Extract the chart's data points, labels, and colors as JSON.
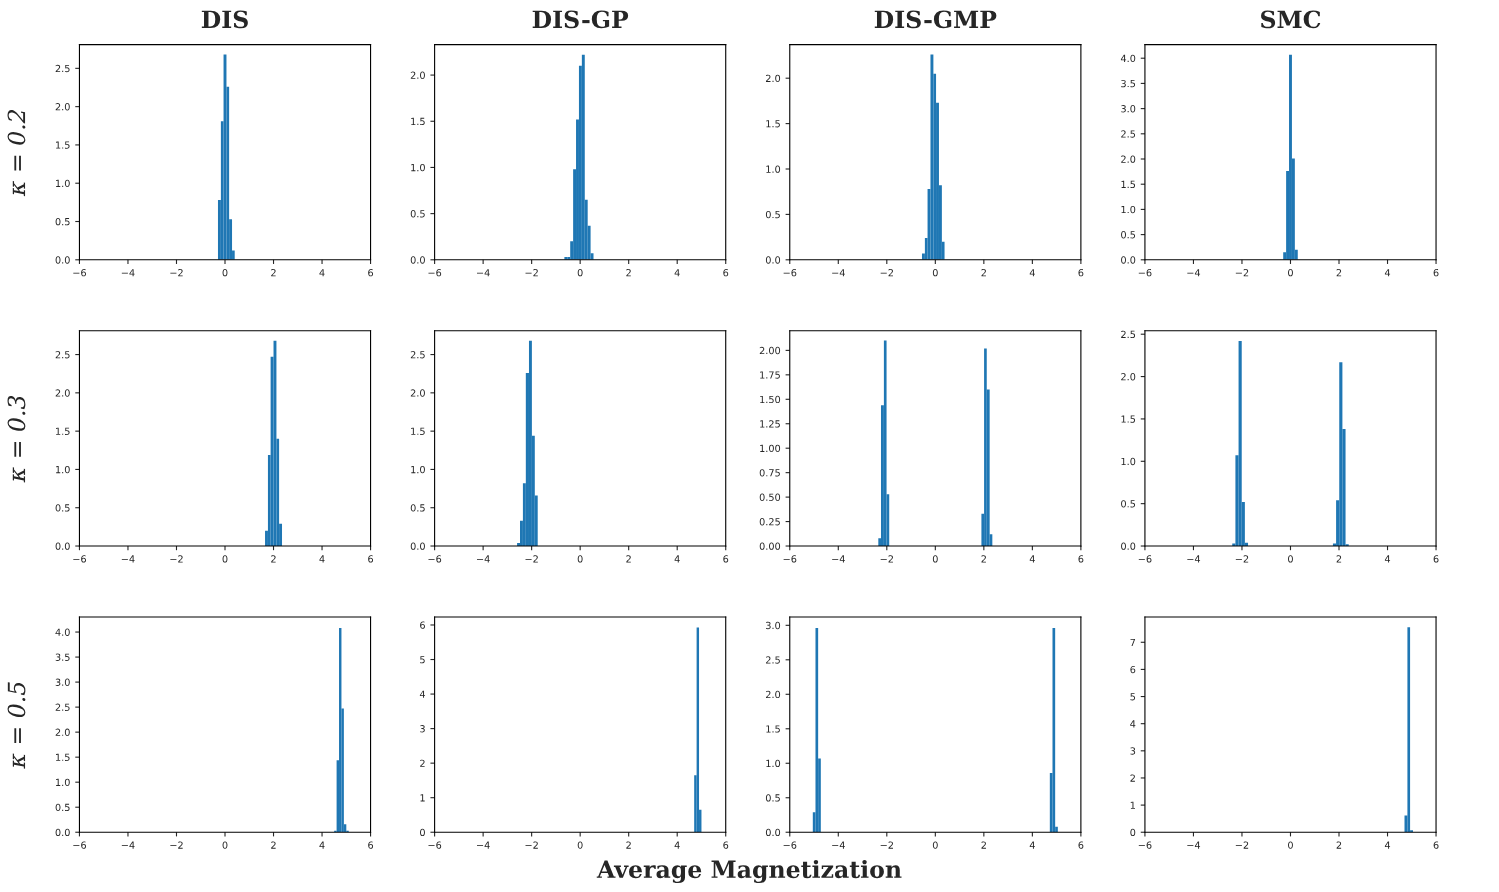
{
  "chart_data": [
    {
      "type": "histogram",
      "title": "DIS",
      "ylabel": "κ = 0.2",
      "color": "#1f77b4",
      "bins": [
        -0.4,
        -0.29,
        -0.17,
        -0.06,
        0.06,
        0.17,
        0.29,
        0.4
      ],
      "values": [
        null,
        0.78,
        1.81,
        2.68,
        2.26,
        0.53,
        0.12
      ],
      "xlim": [
        -6,
        6
      ],
      "xticks": [
        -6,
        -4,
        -2,
        0,
        2,
        4,
        6
      ],
      "ylim": [
        0,
        2.81
      ],
      "yticks": [
        {
          "value": 0,
          "label": "0.0"
        },
        0.5,
        {
          "value": 1,
          "label": "1.0"
        },
        1.5,
        {
          "value": 2,
          "label": "2.0"
        },
        2.5
      ]
    },
    {
      "type": "histogram",
      "title": "DIS-GP",
      "color": "#1f77b4",
      "bins": [
        -0.65,
        -0.53,
        -0.41,
        -0.29,
        -0.17,
        -0.05,
        0.07,
        0.19,
        0.31,
        0.43,
        0.55
      ],
      "values": [
        0.03,
        0.03,
        0.2,
        0.98,
        1.52,
        2.1,
        2.22,
        0.65,
        0.37,
        0.07
      ],
      "xlim": [
        -6,
        6
      ],
      "xticks": [
        -6,
        -4,
        -2,
        0,
        2,
        4,
        6
      ],
      "ylim": [
        0,
        2.33
      ],
      "yticks": [
        {
          "value": 0,
          "label": "0.0"
        },
        0.5,
        {
          "value": 1,
          "label": "1.0"
        },
        1.5,
        {
          "value": 2,
          "label": "2.0"
        }
      ]
    },
    {
      "type": "histogram",
      "title": "DIS-GMP",
      "color": "#1f77b4",
      "bins": [
        -0.55,
        -0.43,
        -0.32,
        -0.2,
        -0.08,
        0.03,
        0.15,
        0.27,
        0.38,
        0.5
      ],
      "values": [
        0.07,
        0.24,
        0.78,
        2.26,
        2.05,
        1.73,
        0.82,
        0.2,
        null
      ],
      "xlim": [
        -6,
        6
      ],
      "xticks": [
        -6,
        -4,
        -2,
        0,
        2,
        4,
        6
      ],
      "ylim": [
        0,
        2.37
      ],
      "yticks": [
        {
          "value": 0,
          "label": "0.0"
        },
        0.5,
        {
          "value": 1,
          "label": "1.0"
        },
        1.5,
        {
          "value": 2,
          "label": "2.0"
        }
      ]
    },
    {
      "type": "histogram",
      "title": "SMC",
      "color": "#1f77b4",
      "bins": [
        -0.3,
        -0.18,
        -0.06,
        0.06,
        0.18,
        0.3
      ],
      "values": [
        0.15,
        1.76,
        4.07,
        2.01,
        0.2
      ],
      "xlim": [
        -6,
        6
      ],
      "xticks": [
        -6,
        -4,
        -2,
        0,
        2,
        4,
        6
      ],
      "ylim": [
        0,
        4.27
      ],
      "yticks": [
        {
          "value": 0,
          "label": "0.0"
        },
        0.5,
        {
          "value": 1,
          "label": "1.0"
        },
        1.5,
        {
          "value": 2,
          "label": "2.0"
        },
        2.5,
        {
          "value": 3,
          "label": "3.0"
        },
        3.5,
        {
          "value": 4,
          "label": "4.0"
        }
      ]
    },
    {
      "type": "histogram",
      "ylabel": "κ = 0.3",
      "color": "#1f77b4",
      "bins": [
        1.65,
        1.77,
        1.88,
        2.0,
        2.12,
        2.23,
        2.35
      ],
      "values": [
        0.2,
        1.19,
        2.47,
        2.68,
        1.4,
        0.29
      ],
      "xlim": [
        -6,
        6
      ],
      "xticks": [
        -6,
        -4,
        -2,
        0,
        2,
        4,
        6
      ],
      "ylim": [
        0,
        2.81
      ],
      "yticks": [
        {
          "value": 0,
          "label": "0.0"
        },
        0.5,
        {
          "value": 1,
          "label": "1.0"
        },
        1.5,
        {
          "value": 2,
          "label": "2.0"
        },
        2.5
      ]
    },
    {
      "type": "histogram",
      "color": "#1f77b4",
      "bins": [
        -2.6,
        -2.48,
        -2.36,
        -2.24,
        -2.11,
        -1.99,
        -1.87,
        -1.75
      ],
      "values": [
        0.04,
        0.33,
        0.82,
        2.26,
        2.68,
        1.44,
        0.66
      ],
      "xlim": [
        -6,
        6
      ],
      "xticks": [
        -6,
        -4,
        -2,
        0,
        2,
        4,
        6
      ],
      "ylim": [
        0,
        2.81
      ],
      "yticks": [
        {
          "value": 0,
          "label": "0.0"
        },
        0.5,
        {
          "value": 1,
          "label": "1.0"
        },
        1.5,
        {
          "value": 2,
          "label": "2.0"
        },
        2.5
      ]
    },
    {
      "type": "histogram",
      "color": "#1f77b4",
      "bins": [
        -2.35,
        -2.24,
        -2.12,
        -2.01,
        -1.9,
        1.9,
        2.01,
        2.12,
        2.24,
        2.35
      ],
      "values": [
        0.08,
        1.44,
        2.1,
        0.53,
        0,
        0.33,
        2.02,
        1.6,
        0.12
      ],
      "xlim": [
        -6,
        6
      ],
      "xticks": [
        -6,
        -4,
        -2,
        0,
        2,
        4,
        6
      ],
      "ylim": [
        0,
        2.2
      ],
      "yticks": [
        {
          "value": 0,
          "label": "0.00"
        },
        0.25,
        {
          "value": 0.5,
          "label": "0.50"
        },
        0.75,
        {
          "value": 1,
          "label": "1.00"
        },
        1.25,
        {
          "value": 1.5,
          "label": "1.50"
        },
        1.75,
        {
          "value": 2,
          "label": "2.00"
        }
      ]
    },
    {
      "type": "histogram",
      "color": "#1f77b4",
      "bins": [
        -2.4,
        -2.27,
        -2.14,
        -2.01,
        -1.88,
        -1.75,
        1.75,
        1.88,
        2.01,
        2.14,
        2.27,
        2.4
      ],
      "values": [
        0.03,
        1.07,
        2.42,
        0.52,
        0.04,
        0,
        0.03,
        0.54,
        2.17,
        1.38,
        0.02
      ],
      "xlim": [
        -6,
        6
      ],
      "xticks": [
        -6,
        -4,
        -2,
        0,
        2,
        4,
        6
      ],
      "ylim": [
        0,
        2.54
      ],
      "yticks": [
        {
          "value": 0,
          "label": "0.0"
        },
        0.5,
        {
          "value": 1,
          "label": "1.0"
        },
        1.5,
        {
          "value": 2,
          "label": "2.0"
        },
        2.5
      ]
    },
    {
      "type": "histogram",
      "ylabel": "κ = 0.5",
      "color": "#1f77b4",
      "bins": [
        4.5,
        4.6,
        4.7,
        4.8,
        4.9,
        5.0,
        5.1
      ],
      "values": [
        0.03,
        1.44,
        4.08,
        2.47,
        0.16,
        0.03
      ],
      "xlim": [
        -6,
        6
      ],
      "xticks": [
        -6,
        -4,
        -2,
        0,
        2,
        4,
        6
      ],
      "ylim": [
        0,
        4.3
      ],
      "yticks": [
        {
          "value": 0,
          "label": "0.0"
        },
        0.5,
        {
          "value": 1,
          "label": "1.0"
        },
        1.5,
        {
          "value": 2,
          "label": "2.0"
        },
        2.5,
        {
          "value": 3,
          "label": "3.0"
        },
        3.5,
        {
          "value": 4,
          "label": "4.0"
        }
      ]
    },
    {
      "type": "histogram",
      "xlabel": "Average Magnetization",
      "color": "#1f77b4",
      "bins": [
        4.7,
        4.8,
        4.9,
        5.0
      ],
      "values": [
        1.65,
        5.93,
        0.65
      ],
      "xlim": [
        -6,
        6
      ],
      "xticks": [
        -6,
        -4,
        -2,
        0,
        2,
        4,
        6
      ],
      "ylim": [
        0,
        6.23
      ],
      "yticks": [
        0,
        1,
        2,
        3,
        4,
        5,
        6
      ]
    },
    {
      "type": "histogram",
      "color": "#1f77b4",
      "bins": [
        -5.05,
        -4.94,
        -4.83,
        -4.72,
        4.72,
        4.83,
        4.94,
        5.05
      ],
      "values": [
        0.29,
        2.96,
        1.07,
        0,
        0.86,
        2.96,
        0.08
      ],
      "xlim": [
        -6,
        6
      ],
      "xticks": [
        -6,
        -4,
        -2,
        0,
        2,
        4,
        6
      ],
      "ylim": [
        0,
        3.12
      ],
      "yticks": [
        {
          "value": 0,
          "label": "0.0"
        },
        0.5,
        {
          "value": 1,
          "label": "1.0"
        },
        1.5,
        {
          "value": 2,
          "label": "2.0"
        },
        2.5,
        {
          "value": 3,
          "label": "3.0"
        }
      ]
    },
    {
      "type": "histogram",
      "color": "#1f77b4",
      "bins": [
        4.7,
        4.82,
        4.93,
        5.05
      ],
      "values": [
        0.62,
        7.55,
        0.07
      ],
      "xlim": [
        -6,
        6
      ],
      "xticks": [
        -6,
        -4,
        -2,
        0,
        2,
        4,
        6
      ],
      "ylim": [
        0,
        7.93
      ],
      "yticks": [
        0,
        1,
        2,
        3,
        4,
        5,
        6,
        7
      ]
    }
  ]
}
